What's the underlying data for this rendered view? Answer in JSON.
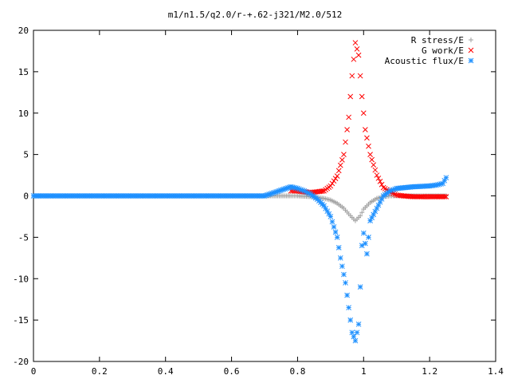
{
  "chart_data": {
    "type": "scatter",
    "title": "m1/n1.5/q2.0/r-+.62-j321/M2.0/512",
    "xlabel": "",
    "ylabel": "",
    "xlim": [
      0,
      1.4
    ],
    "ylim": [
      -20,
      20
    ],
    "x_ticks": [
      0,
      0.2,
      0.4,
      0.6,
      0.8,
      1,
      1.2,
      1.4
    ],
    "x_tick_labels": [
      "0",
      "0.2",
      "0.4",
      "0.6",
      "0.8",
      "1",
      "1.2",
      "1.4"
    ],
    "y_ticks": [
      -20,
      -15,
      -10,
      -5,
      0,
      5,
      10,
      15,
      20
    ],
    "y_tick_labels": [
      "-20",
      "-15",
      "-10",
      "-5",
      "0",
      "5",
      "10",
      "15",
      "20"
    ],
    "grid": false,
    "legend_position": "top-right",
    "series": [
      {
        "name": "R stress/E",
        "marker": "plus",
        "color": "#a0a0a0",
        "points": [
          [
            0,
            0
          ],
          [
            0.1,
            0
          ],
          [
            0.2,
            0
          ],
          [
            0.3,
            0
          ],
          [
            0.4,
            0
          ],
          [
            0.5,
            0
          ],
          [
            0.6,
            0
          ],
          [
            0.7,
            0
          ],
          [
            0.78,
            0
          ],
          [
            0.8,
            0
          ],
          [
            0.84,
            -0.1
          ],
          [
            0.88,
            -0.3
          ],
          [
            0.9,
            -0.5
          ],
          [
            0.92,
            -0.9
          ],
          [
            0.94,
            -1.5
          ],
          [
            0.96,
            -2.4
          ],
          [
            0.975,
            -3.0
          ],
          [
            0.99,
            -2.4
          ],
          [
            1.0,
            -1.6
          ],
          [
            1.02,
            -0.8
          ],
          [
            1.04,
            -0.3
          ],
          [
            1.06,
            -0.1
          ],
          [
            1.08,
            0
          ],
          [
            1.1,
            0
          ],
          [
            1.15,
            0
          ],
          [
            1.2,
            0
          ],
          [
            1.25,
            0
          ]
        ]
      },
      {
        "name": "G work/E",
        "marker": "cross",
        "color": "#ff0000",
        "points": [
          [
            0.78,
            0.6
          ],
          [
            0.8,
            0.6
          ],
          [
            0.84,
            0.4
          ],
          [
            0.88,
            0.6
          ],
          [
            0.9,
            1.2
          ],
          [
            0.92,
            2.4
          ],
          [
            0.94,
            5.0
          ],
          [
            0.955,
            9.5
          ],
          [
            0.965,
            14.5
          ],
          [
            0.975,
            18.5
          ],
          [
            0.985,
            17.0
          ],
          [
            0.995,
            12.0
          ],
          [
            1.005,
            8.0
          ],
          [
            1.02,
            5.0
          ],
          [
            1.04,
            2.5
          ],
          [
            1.06,
            1.0
          ],
          [
            1.08,
            0.5
          ],
          [
            1.1,
            0.1
          ],
          [
            1.12,
            0
          ],
          [
            1.15,
            -0.1
          ],
          [
            1.18,
            -0.1
          ],
          [
            1.2,
            -0.1
          ],
          [
            1.25,
            -0.1
          ]
        ]
      },
      {
        "name": "Acoustic flux/E",
        "marker": "star",
        "color": "#1e90ff",
        "points": [
          [
            0,
            0
          ],
          [
            0.1,
            0
          ],
          [
            0.2,
            0
          ],
          [
            0.3,
            0
          ],
          [
            0.4,
            0
          ],
          [
            0.5,
            0
          ],
          [
            0.6,
            0
          ],
          [
            0.7,
            0
          ],
          [
            0.78,
            1.1
          ],
          [
            0.8,
            0.9
          ],
          [
            0.82,
            0.6
          ],
          [
            0.84,
            0.2
          ],
          [
            0.86,
            -0.4
          ],
          [
            0.88,
            -1.2
          ],
          [
            0.9,
            -2.5
          ],
          [
            0.92,
            -5.0
          ],
          [
            0.93,
            -7.5
          ],
          [
            0.945,
            -10.5
          ],
          [
            0.955,
            -13.5
          ],
          [
            0.965,
            -16.5
          ],
          [
            0.975,
            -17.5
          ],
          [
            0.985,
            -15.5
          ],
          [
            0.99,
            -11.0
          ],
          [
            0.995,
            -6.0
          ],
          [
            1.0,
            -4.5
          ],
          [
            1.01,
            -7.0
          ],
          [
            1.02,
            -3.0
          ],
          [
            1.04,
            -1.5
          ],
          [
            1.06,
            0
          ],
          [
            1.08,
            0.6
          ],
          [
            1.1,
            0.9
          ],
          [
            1.15,
            1.1
          ],
          [
            1.2,
            1.2
          ],
          [
            1.22,
            1.3
          ],
          [
            1.24,
            1.5
          ],
          [
            1.25,
            2.2
          ]
        ]
      }
    ]
  }
}
